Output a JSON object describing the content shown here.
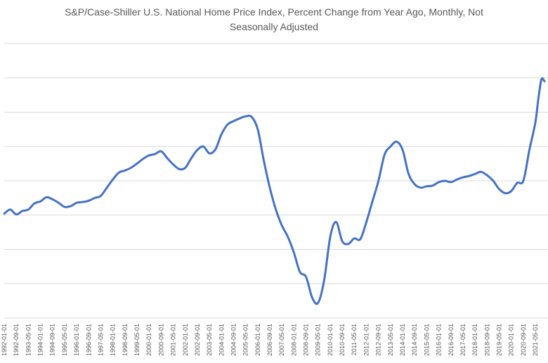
{
  "chart_data": {
    "type": "line",
    "title_lines": [
      "S&P/Case-Shiller U.S. National Home Price Index, Percent Change from Year Ago, Monthly, Not",
      "Seasonally Adjusted"
    ],
    "xlabel": "",
    "ylabel": "",
    "y_tick_labels_visible": false,
    "ylim": [
      -15,
      25
    ],
    "y_gridlines": [
      -15,
      -10,
      -5,
      0,
      5,
      10,
      15,
      20,
      25
    ],
    "grid": true,
    "legend": "none",
    "line_color": "#4472c4",
    "x_tick_labels": [
      "1992-01-01",
      "1992-09-01",
      "1993-05-01",
      "1994-01-01",
      "1994-09-01",
      "1995-05-01",
      "1996-01-01",
      "1996-09-01",
      "1997-05-01",
      "1998-01-01",
      "1998-09-01",
      "1999-05-01",
      "2000-01-01",
      "2000-09-01",
      "2001-05-01",
      "2002-01-01",
      "2002-09-01",
      "2003-05-01",
      "2004-01-01",
      "2004-09-01",
      "2005-05-01",
      "2006-01-01",
      "2006-09-01",
      "2007-05-01",
      "2008-01-01",
      "2008-09-01",
      "2009-05-01",
      "2010-01-01",
      "2010-09-01",
      "2011-05-01",
      "2012-01-01",
      "2012-09-01",
      "2013-05-01",
      "2014-01-01",
      "2014-09-01",
      "2015-05-01",
      "2016-01-01",
      "2016-09-01",
      "2017-05-01",
      "2018-01-01",
      "2018-09-01",
      "2019-05-01",
      "2020-01-01",
      "2020-09-01",
      "2021-05-01"
    ],
    "series": [
      {
        "x": [
          "1992-01-01",
          "1992-05-01",
          "1992-09-01",
          "1993-01-01",
          "1993-05-01",
          "1993-09-01",
          "1994-01-01",
          "1994-05-01",
          "1994-09-01",
          "1995-01-01",
          "1995-05-01",
          "1995-09-01",
          "1996-01-01",
          "1996-05-01",
          "1996-09-01",
          "1997-01-01",
          "1997-05-01",
          "1997-09-01",
          "1998-01-01",
          "1998-05-01",
          "1998-09-01",
          "1999-01-01",
          "1999-05-01",
          "1999-09-01",
          "2000-01-01",
          "2000-05-01",
          "2000-09-01",
          "2001-01-01",
          "2001-05-01",
          "2001-09-01",
          "2002-01-01",
          "2002-05-01",
          "2002-09-01",
          "2003-01-01",
          "2003-05-01",
          "2003-09-01",
          "2004-01-01",
          "2004-05-01",
          "2004-09-01",
          "2005-01-01",
          "2005-05-01",
          "2005-09-01",
          "2006-01-01",
          "2006-05-01",
          "2006-09-01",
          "2007-01-01",
          "2007-05-01",
          "2007-09-01",
          "2008-01-01",
          "2008-05-01",
          "2008-09-01",
          "2009-01-01",
          "2009-05-01",
          "2009-09-01",
          "2010-01-01",
          "2010-05-01",
          "2010-09-01",
          "2011-01-01",
          "2011-05-01",
          "2011-09-01",
          "2012-01-01",
          "2012-05-01",
          "2012-09-01",
          "2013-01-01",
          "2013-05-01",
          "2013-09-01",
          "2014-01-01",
          "2014-05-01",
          "2014-09-01",
          "2015-01-01",
          "2015-05-01",
          "2015-09-01",
          "2016-01-01",
          "2016-05-01",
          "2016-09-01",
          "2017-01-01",
          "2017-05-01",
          "2017-09-01",
          "2018-01-01",
          "2018-05-01",
          "2018-09-01",
          "2019-01-01",
          "2019-05-01",
          "2019-09-01",
          "2020-01-01",
          "2020-05-01",
          "2020-09-01",
          "2021-01-01",
          "2021-05-01",
          "2021-07-01",
          "2021-09-01",
          "2021-11-01"
        ],
        "values": [
          0.2,
          0.8,
          0.1,
          0.6,
          0.8,
          1.7,
          2.0,
          2.6,
          2.3,
          1.8,
          1.2,
          1.3,
          1.8,
          1.9,
          2.1,
          2.5,
          2.8,
          4.0,
          5.2,
          6.2,
          6.5,
          6.9,
          7.5,
          8.2,
          8.7,
          8.9,
          9.3,
          8.3,
          7.4,
          6.7,
          6.9,
          8.3,
          9.5,
          10.0,
          9.0,
          9.6,
          11.8,
          13.2,
          13.7,
          14.1,
          14.4,
          14.3,
          12.5,
          8.0,
          4.0,
          0.8,
          -1.5,
          -3.2,
          -5.5,
          -8.3,
          -9.0,
          -12.0,
          -12.8,
          -9.5,
          -3.2,
          -1.0,
          -3.8,
          -4.2,
          -3.4,
          -3.5,
          -1.0,
          2.0,
          5.0,
          8.8,
          10.0,
          10.7,
          9.5,
          6.0,
          4.5,
          4.0,
          4.2,
          4.3,
          4.8,
          5.0,
          4.8,
          5.2,
          5.5,
          5.7,
          6.0,
          6.3,
          5.8,
          5.0,
          3.8,
          3.2,
          3.5,
          4.7,
          5.0,
          9.5,
          13.5,
          17.0,
          19.8,
          19.5
        ]
      }
    ]
  }
}
